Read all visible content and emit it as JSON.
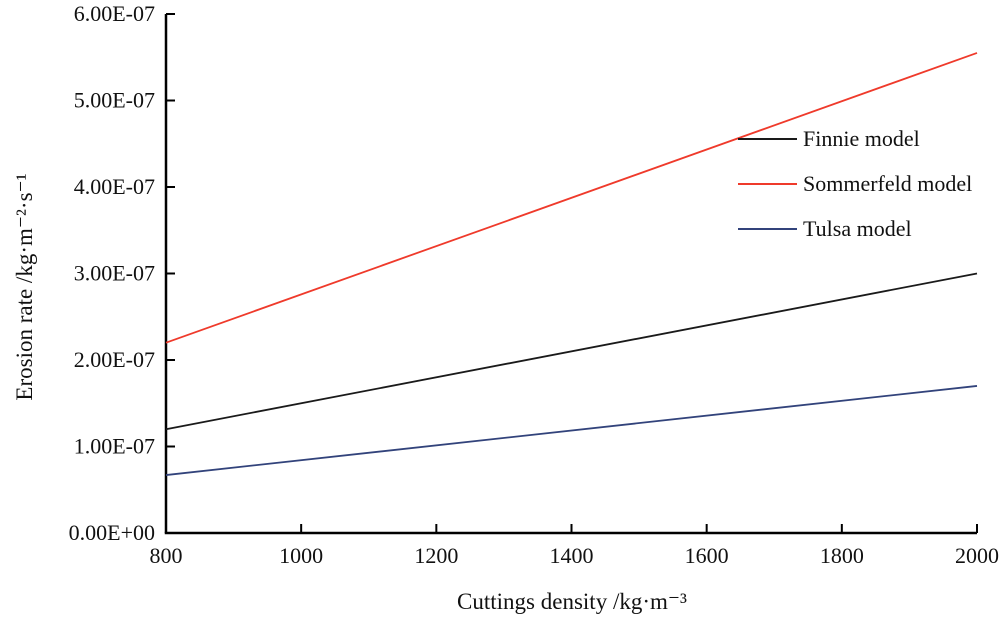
{
  "figure": {
    "background": "#ffffff",
    "text_color": "#111111",
    "axis_color": "#000000"
  },
  "chart_data": {
    "type": "line",
    "title": "",
    "xlabel": "Cuttings density /kg·m⁻³",
    "ylabel": "Erosion rate /kg·m⁻²·s⁻¹",
    "xlim": [
      800,
      2000
    ],
    "ylim": [
      0,
      6e-07
    ],
    "x_ticks": [
      "800",
      "1000",
      "1200",
      "1400",
      "1600",
      "1800",
      "2000"
    ],
    "y_ticks": [
      "0.00E+00",
      "1.00E-07",
      "2.00E-07",
      "3.00E-07",
      "4.00E-07",
      "5.00E-07",
      "6.00E-07"
    ],
    "grid": false,
    "legend_position": "inside-upper-right",
    "series": [
      {
        "name": "Finnie model",
        "color": "#1a1a1a",
        "x": [
          800,
          2000
        ],
        "y": [
          1.2e-07,
          3e-07
        ]
      },
      {
        "name": "Sommerfeld model",
        "color": "#ef3a2b",
        "x": [
          800,
          2000
        ],
        "y": [
          2.2e-07,
          5.55e-07
        ]
      },
      {
        "name": "Tulsa model",
        "color": "#32437b",
        "x": [
          800,
          2000
        ],
        "y": [
          6.7e-08,
          1.7e-07
        ]
      }
    ]
  }
}
